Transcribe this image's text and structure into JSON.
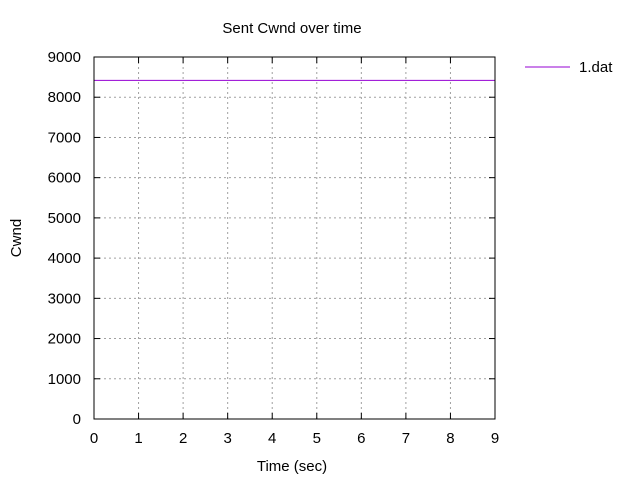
{
  "chart_data": {
    "type": "line",
    "title": "Sent Cwnd over time",
    "xlabel": "Time (sec)",
    "ylabel": "Cwnd",
    "xlim": [
      0,
      9
    ],
    "ylim": [
      0,
      9000
    ],
    "xticks": [
      "0",
      "1",
      "2",
      "3",
      "4",
      "5",
      "6",
      "7",
      "8",
      "9"
    ],
    "yticks": [
      "0",
      "1000",
      "2000",
      "3000",
      "4000",
      "5000",
      "6000",
      "7000",
      "8000",
      "9000"
    ],
    "grid": true,
    "legend_position": "top-right outside",
    "series": [
      {
        "name": "1.dat",
        "color": "#9400d3",
        "x": [
          0,
          9
        ],
        "y": [
          8420,
          8420
        ]
      }
    ]
  }
}
